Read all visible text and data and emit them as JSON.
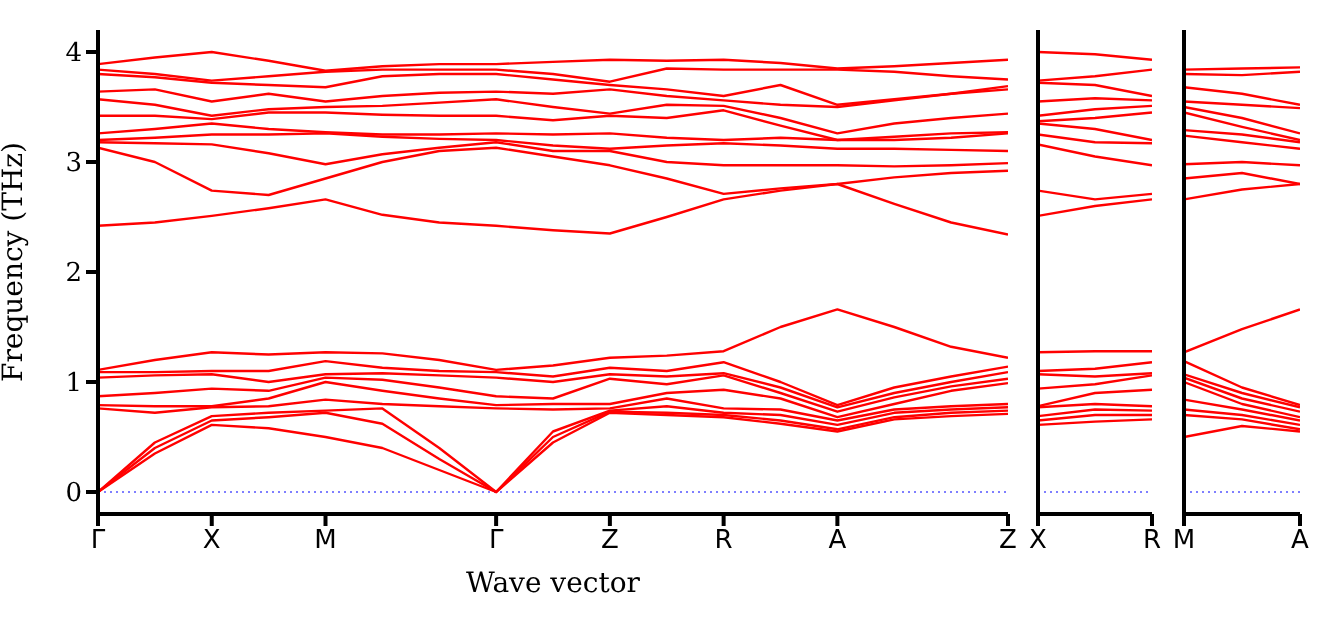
{
  "chart_data": [
    {
      "type": "line",
      "xlabel": "Wave vector",
      "ylabel": "Frequency (THz)",
      "categories": [
        "Γ",
        null,
        "X",
        null,
        "M",
        null,
        null,
        "Γ",
        null,
        "Z",
        null,
        "R",
        null,
        "A",
        null,
        null,
        "Z"
      ],
      "ylim": [
        -0.2,
        4.2
      ],
      "yticks": [
        0,
        1,
        2,
        3,
        4
      ],
      "ref_lines": [
        {
          "axis": "y",
          "value": 0,
          "color": "#0000ff",
          "line_style": "dotted"
        }
      ],
      "series": [
        {
          "color": "#ff0000",
          "values": [
            3.89,
            3.95,
            4.0,
            3.92,
            3.83,
            3.87,
            3.89,
            3.89,
            3.91,
            3.93,
            3.92,
            3.93,
            3.9,
            3.85,
            3.87,
            3.9,
            3.93
          ]
        },
        {
          "color": "#ff0000",
          "values": [
            3.84,
            3.8,
            3.74,
            3.78,
            3.82,
            3.84,
            3.84,
            3.84,
            3.8,
            3.73,
            3.85,
            3.84,
            3.84,
            3.84,
            3.82,
            3.78,
            3.75
          ]
        },
        {
          "color": "#ff0000",
          "values": [
            3.8,
            3.77,
            3.72,
            3.7,
            3.68,
            3.78,
            3.8,
            3.8,
            3.75,
            3.7,
            3.66,
            3.6,
            3.7,
            3.52,
            3.57,
            3.62,
            3.66
          ]
        },
        {
          "color": "#ff0000",
          "values": [
            3.64,
            3.66,
            3.55,
            3.62,
            3.55,
            3.6,
            3.63,
            3.64,
            3.62,
            3.66,
            3.6,
            3.56,
            3.52,
            3.5,
            3.56,
            3.62,
            3.69
          ]
        },
        {
          "color": "#ff0000",
          "values": [
            3.57,
            3.52,
            3.42,
            3.48,
            3.5,
            3.51,
            3.54,
            3.57,
            3.5,
            3.44,
            3.52,
            3.51,
            3.4,
            3.26,
            3.35,
            3.4,
            3.44
          ]
        },
        {
          "color": "#ff0000",
          "values": [
            3.42,
            3.42,
            3.39,
            3.45,
            3.45,
            3.43,
            3.42,
            3.42,
            3.38,
            3.42,
            3.4,
            3.47,
            3.33,
            3.2,
            3.23,
            3.26,
            3.27
          ]
        },
        {
          "color": "#ff0000",
          "values": [
            3.26,
            3.3,
            3.35,
            3.3,
            3.27,
            3.25,
            3.25,
            3.26,
            3.25,
            3.26,
            3.22,
            3.2,
            3.22,
            3.2,
            3.2,
            3.22,
            3.26
          ]
        },
        {
          "color": "#ff0000",
          "values": [
            3.2,
            3.22,
            3.25,
            3.25,
            3.26,
            3.23,
            3.21,
            3.2,
            3.15,
            3.12,
            3.15,
            3.17,
            3.15,
            3.12,
            3.12,
            3.11,
            3.1
          ]
        },
        {
          "color": "#ff0000",
          "values": [
            3.18,
            3.17,
            3.16,
            3.08,
            2.98,
            3.07,
            3.13,
            3.18,
            3.1,
            3.1,
            3.0,
            2.97,
            2.97,
            2.97,
            2.96,
            2.97,
            2.99
          ]
        },
        {
          "color": "#ff0000",
          "values": [
            3.13,
            3.0,
            2.74,
            2.7,
            2.85,
            3.0,
            3.1,
            3.13,
            3.05,
            2.97,
            2.85,
            2.71,
            2.76,
            2.8,
            2.86,
            2.9,
            2.92
          ]
        },
        {
          "color": "#ff0000",
          "values": [
            2.42,
            2.45,
            2.51,
            2.58,
            2.66,
            2.52,
            2.45,
            2.42,
            2.38,
            2.35,
            2.5,
            2.66,
            2.74,
            2.8,
            2.62,
            2.45,
            2.34
          ]
        },
        {
          "color": "#ff0000",
          "values": [
            1.11,
            1.2,
            1.27,
            1.25,
            1.27,
            1.26,
            1.2,
            1.11,
            1.15,
            1.22,
            1.24,
            1.28,
            1.5,
            1.66,
            1.5,
            1.32,
            1.22
          ]
        },
        {
          "color": "#ff0000",
          "values": [
            1.09,
            1.09,
            1.1,
            1.1,
            1.19,
            1.13,
            1.1,
            1.09,
            1.05,
            1.13,
            1.1,
            1.18,
            1.0,
            0.79,
            0.95,
            1.05,
            1.14
          ]
        },
        {
          "color": "#ff0000",
          "values": [
            1.04,
            1.06,
            1.07,
            1.0,
            1.07,
            1.08,
            1.06,
            1.04,
            1.0,
            1.07,
            1.05,
            1.08,
            0.95,
            0.77,
            0.9,
            1.0,
            1.09
          ]
        },
        {
          "color": "#ff0000",
          "values": [
            0.87,
            0.9,
            0.94,
            0.92,
            1.04,
            1.02,
            0.95,
            0.87,
            0.85,
            1.03,
            0.98,
            1.06,
            0.9,
            0.73,
            0.86,
            0.96,
            1.03
          ]
        },
        {
          "color": "#ff0000",
          "values": [
            0.79,
            0.78,
            0.78,
            0.85,
            1.0,
            0.92,
            0.85,
            0.79,
            0.8,
            0.8,
            0.9,
            0.93,
            0.85,
            0.68,
            0.8,
            0.92,
            0.99
          ]
        },
        {
          "color": "#ff0000",
          "values": [
            0.76,
            0.72,
            0.77,
            0.78,
            0.84,
            0.8,
            0.78,
            0.76,
            0.75,
            0.76,
            0.85,
            0.76,
            0.75,
            0.65,
            0.75,
            0.78,
            0.8
          ]
        },
        {
          "color": "#ff0000",
          "values": [
            0,
            0.45,
            0.69,
            0.72,
            0.74,
            0.76,
            0.4,
            0,
            0.55,
            0.74,
            0.78,
            0.72,
            0.7,
            0.61,
            0.72,
            0.75,
            0.77
          ]
        },
        {
          "color": "#ff0000",
          "values": [
            0,
            0.4,
            0.65,
            0.68,
            0.72,
            0.62,
            0.3,
            0,
            0.5,
            0.73,
            0.72,
            0.7,
            0.65,
            0.57,
            0.68,
            0.72,
            0.74
          ]
        },
        {
          "color": "#ff0000",
          "values": [
            0,
            0.35,
            0.61,
            0.58,
            0.5,
            0.4,
            0.2,
            0,
            0.45,
            0.72,
            0.7,
            0.68,
            0.62,
            0.55,
            0.66,
            0.69,
            0.71
          ]
        }
      ]
    },
    {
      "type": "line",
      "categories": [
        "X",
        null,
        "R"
      ],
      "ylim": [
        -0.2,
        4.2
      ],
      "yticks": [
        0,
        1,
        2,
        3,
        4
      ],
      "tick_labels": "x",
      "ref_lines": [
        {
          "axis": "y",
          "value": 0,
          "color": "#0000ff",
          "line_style": "dotted"
        }
      ],
      "series": [
        {
          "color": "#ff0000",
          "values": [
            4.0,
            3.98,
            3.93
          ]
        },
        {
          "color": "#ff0000",
          "values": [
            3.74,
            3.78,
            3.84
          ]
        },
        {
          "color": "#ff0000",
          "values": [
            3.72,
            3.7,
            3.6
          ]
        },
        {
          "color": "#ff0000",
          "values": [
            3.55,
            3.58,
            3.56
          ]
        },
        {
          "color": "#ff0000",
          "values": [
            3.42,
            3.48,
            3.51
          ]
        },
        {
          "color": "#ff0000",
          "values": [
            3.37,
            3.4,
            3.45
          ]
        },
        {
          "color": "#ff0000",
          "values": [
            3.35,
            3.3,
            3.2
          ]
        },
        {
          "color": "#ff0000",
          "values": [
            3.25,
            3.18,
            3.17
          ]
        },
        {
          "color": "#ff0000",
          "values": [
            3.16,
            3.05,
            2.97
          ]
        },
        {
          "color": "#ff0000",
          "values": [
            2.74,
            2.66,
            2.71
          ]
        },
        {
          "color": "#ff0000",
          "values": [
            2.51,
            2.6,
            2.66
          ]
        },
        {
          "color": "#ff0000",
          "values": [
            1.27,
            1.28,
            1.28
          ]
        },
        {
          "color": "#ff0000",
          "values": [
            1.1,
            1.12,
            1.18
          ]
        },
        {
          "color": "#ff0000",
          "values": [
            1.07,
            1.05,
            1.08
          ]
        },
        {
          "color": "#ff0000",
          "values": [
            0.94,
            0.98,
            1.06
          ]
        },
        {
          "color": "#ff0000",
          "values": [
            0.78,
            0.9,
            0.93
          ]
        },
        {
          "color": "#ff0000",
          "values": [
            0.77,
            0.8,
            0.78
          ]
        },
        {
          "color": "#ff0000",
          "values": [
            0.69,
            0.75,
            0.74
          ]
        },
        {
          "color": "#ff0000",
          "values": [
            0.65,
            0.7,
            0.7
          ]
        },
        {
          "color": "#ff0000",
          "values": [
            0.61,
            0.64,
            0.66
          ]
        }
      ]
    },
    {
      "type": "line",
      "categories": [
        "M",
        null,
        "A"
      ],
      "ylim": [
        -0.2,
        4.2
      ],
      "yticks": [
        0,
        1,
        2,
        3,
        4
      ],
      "tick_labels": "x",
      "ref_lines": [
        {
          "axis": "y",
          "value": 0,
          "color": "#0000ff",
          "line_style": "dotted"
        }
      ],
      "series": [
        {
          "color": "#ff0000",
          "values": [
            3.84,
            3.85,
            3.86
          ]
        },
        {
          "color": "#ff0000",
          "values": [
            3.8,
            3.79,
            3.82
          ]
        },
        {
          "color": "#ff0000",
          "values": [
            3.68,
            3.62,
            3.52
          ]
        },
        {
          "color": "#ff0000",
          "values": [
            3.55,
            3.52,
            3.49
          ]
        },
        {
          "color": "#ff0000",
          "values": [
            3.5,
            3.4,
            3.26
          ]
        },
        {
          "color": "#ff0000",
          "values": [
            3.45,
            3.32,
            3.2
          ]
        },
        {
          "color": "#ff0000",
          "values": [
            3.29,
            3.25,
            3.18
          ]
        },
        {
          "color": "#ff0000",
          "values": [
            3.24,
            3.18,
            3.12
          ]
        },
        {
          "color": "#ff0000",
          "values": [
            2.98,
            3.0,
            2.97
          ]
        },
        {
          "color": "#ff0000",
          "values": [
            2.85,
            2.9,
            2.8
          ]
        },
        {
          "color": "#ff0000",
          "values": [
            2.66,
            2.75,
            2.8
          ]
        },
        {
          "color": "#ff0000",
          "values": [
            1.27,
            1.48,
            1.66
          ]
        },
        {
          "color": "#ff0000",
          "values": [
            1.19,
            0.95,
            0.79
          ]
        },
        {
          "color": "#ff0000",
          "values": [
            1.07,
            0.9,
            0.77
          ]
        },
        {
          "color": "#ff0000",
          "values": [
            1.04,
            0.85,
            0.73
          ]
        },
        {
          "color": "#ff0000",
          "values": [
            1.0,
            0.8,
            0.68
          ]
        },
        {
          "color": "#ff0000",
          "values": [
            0.84,
            0.75,
            0.65
          ]
        },
        {
          "color": "#ff0000",
          "values": [
            0.75,
            0.7,
            0.61
          ]
        },
        {
          "color": "#ff0000",
          "values": [
            0.7,
            0.66,
            0.57
          ]
        },
        {
          "color": "#ff0000",
          "values": [
            0.5,
            0.6,
            0.55
          ]
        }
      ]
    }
  ]
}
